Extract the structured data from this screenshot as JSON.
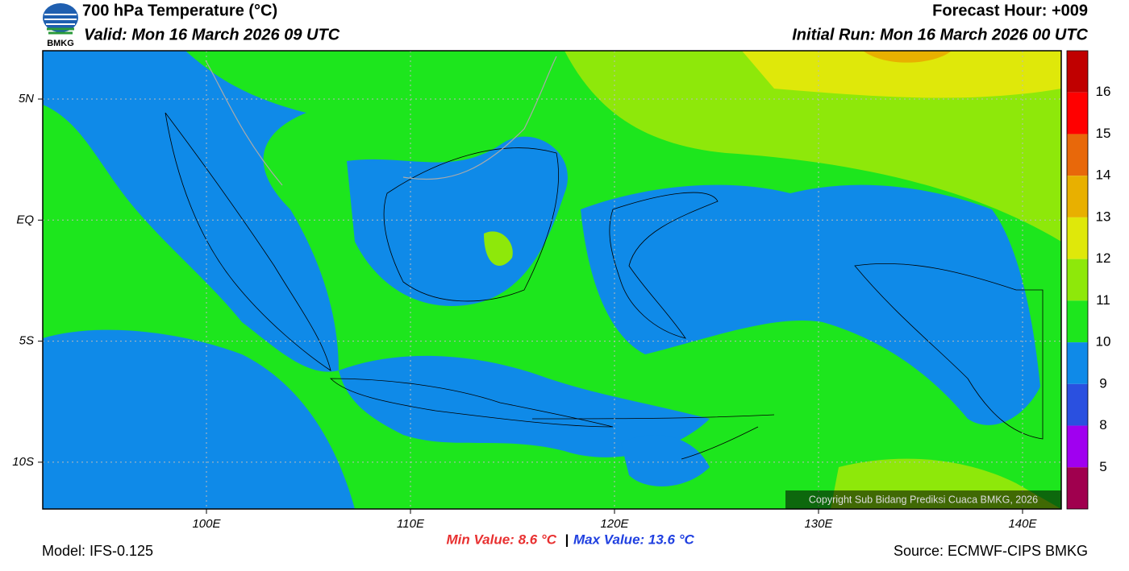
{
  "header": {
    "title": "700 hPa Temperature (°C)",
    "valid": "Valid: Mon 16 March 2026 09 UTC",
    "forecast_hour": "Forecast Hour: +009",
    "initial_run": "Initial Run: Mon 16 March 2026 00 UTC",
    "logo_text": "BMKG"
  },
  "map": {
    "lat_labels": [
      "5N",
      "EQ",
      "5S",
      "10S"
    ],
    "lon_labels": [
      "100E",
      "110E",
      "120E",
      "130E",
      "140E"
    ],
    "copyright": "Copyright Sub Bidang Prediksi Cuaca BMKG, 2026"
  },
  "colorbar": {
    "labels": [
      "16",
      "15",
      "14",
      "13",
      "12",
      "11",
      "10",
      "9",
      "8",
      "5"
    ],
    "colors": [
      "#c00000",
      "#ff0000",
      "#e8680a",
      "#e8b000",
      "#dfe80a",
      "#8ee80a",
      "#1de61d",
      "#0f8ae8",
      "#2a50e0",
      "#a000f0",
      "#a0004e"
    ]
  },
  "footer": {
    "model": "Model: IFS-0.125",
    "min": "Min Value: 8.6 °C",
    "separator": "|",
    "max": "Max Value: 13.6 °C",
    "source": "Source: ECMWF-CIPS BMKG"
  }
}
